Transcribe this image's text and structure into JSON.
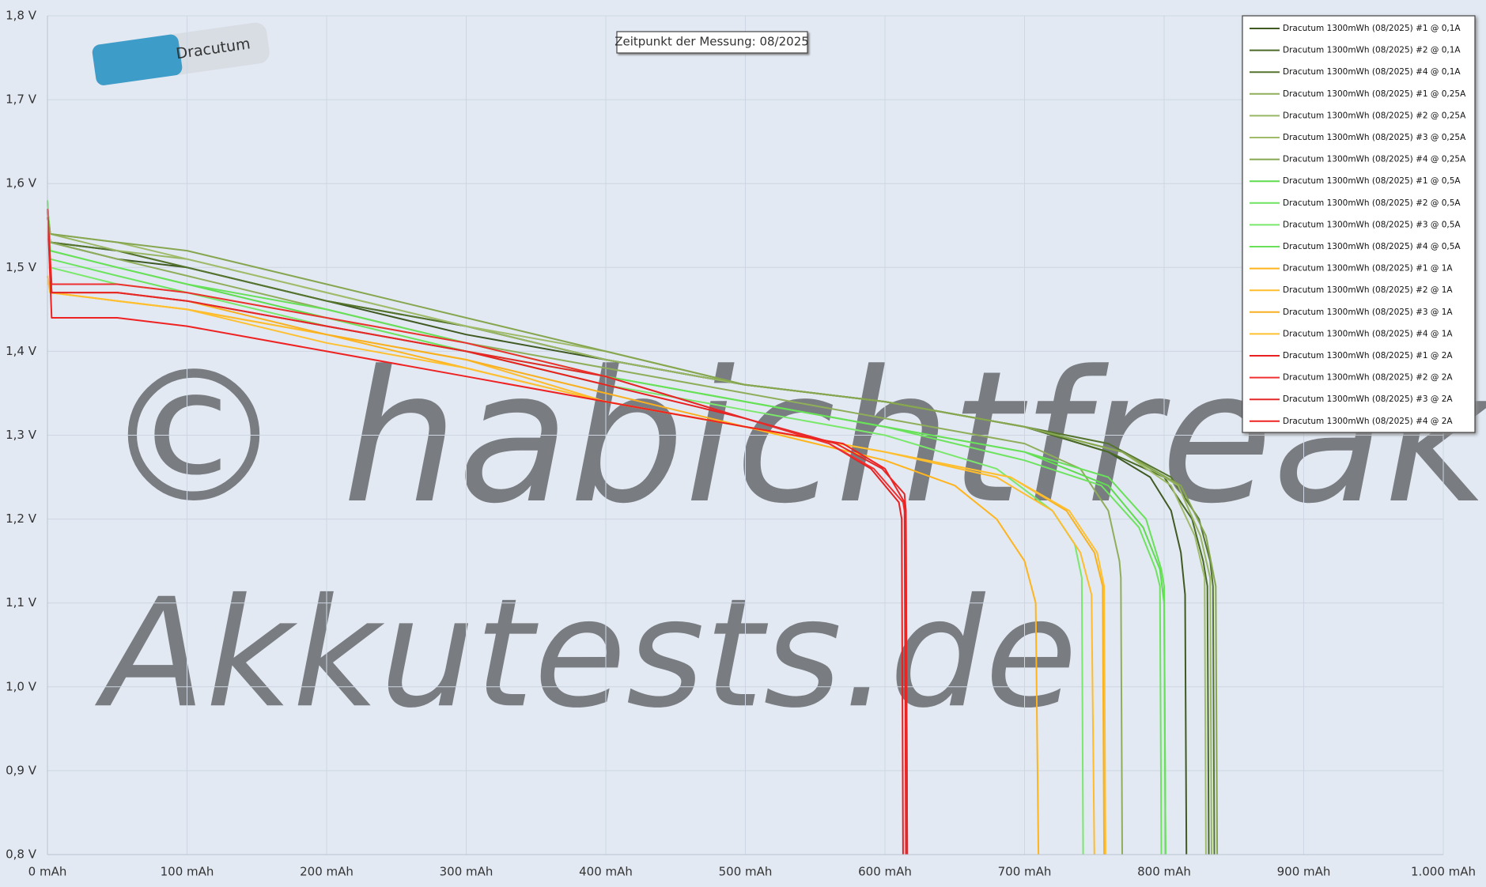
{
  "chart_data": {
    "type": "line",
    "annotation": "Zeitpunkt der Messung: 08/2025",
    "watermark": [
      "© habichtfreak",
      "Akkutests.de"
    ],
    "xlim": [
      0,
      1000
    ],
    "ylim": [
      0.8,
      1.8
    ],
    "grid": true,
    "legend": "top-right",
    "xticks": [
      {
        "value": 0,
        "label": "0 mAh"
      },
      {
        "value": 100,
        "label": "100 mAh"
      },
      {
        "value": 200,
        "label": "200 mAh"
      },
      {
        "value": 300,
        "label": "300 mAh"
      },
      {
        "value": 400,
        "label": "400 mAh"
      },
      {
        "value": 500,
        "label": "500 mAh"
      },
      {
        "value": 600,
        "label": "600 mAh"
      },
      {
        "value": 700,
        "label": "700 mAh"
      },
      {
        "value": 800,
        "label": "800 mAh"
      },
      {
        "value": 900,
        "label": "900 mAh"
      },
      {
        "value": 1000,
        "label": "1.000 mAh"
      }
    ],
    "yticks": [
      {
        "value": 0.8,
        "label": "0,8 V"
      },
      {
        "value": 0.9,
        "label": "0,9 V"
      },
      {
        "value": 1.0,
        "label": "1,0 V"
      },
      {
        "value": 1.1,
        "label": "1,1 V"
      },
      {
        "value": 1.2,
        "label": "1,2 V"
      },
      {
        "value": 1.3,
        "label": "1,3 V"
      },
      {
        "value": 1.4,
        "label": "1,4 V"
      },
      {
        "value": 1.5,
        "label": "1,5 V"
      },
      {
        "value": 1.6,
        "label": "1,6 V"
      },
      {
        "value": 1.7,
        "label": "1,7 V"
      },
      {
        "value": 1.8,
        "label": "1,8 V"
      }
    ],
    "series": [
      {
        "name": "Dracutum 1300mWh (08/2025) #1 @ 0,1A",
        "color": "#3f5a22",
        "x": [
          0,
          2,
          50,
          100,
          200,
          300,
          400,
          500,
          600,
          700,
          760,
          790,
          805,
          812,
          815,
          816
        ],
        "values": [
          1.56,
          1.53,
          1.51,
          1.5,
          1.46,
          1.42,
          1.39,
          1.36,
          1.34,
          1.31,
          1.28,
          1.25,
          1.21,
          1.16,
          1.11,
          0.8
        ]
      },
      {
        "name": "Dracutum 1300mWh (08/2025) #2 @ 0,1A",
        "color": "#4a6a28",
        "x": [
          0,
          2,
          50,
          100,
          200,
          300,
          400,
          500,
          600,
          700,
          760,
          800,
          820,
          828,
          831,
          832
        ],
        "values": [
          1.56,
          1.53,
          1.52,
          1.5,
          1.46,
          1.43,
          1.39,
          1.36,
          1.34,
          1.31,
          1.28,
          1.25,
          1.2,
          1.15,
          1.12,
          0.8
        ]
      },
      {
        "name": "Dracutum 1300mWh (08/2025) #4 @ 0,1A",
        "color": "#55742e",
        "x": [
          0,
          2,
          50,
          100,
          200,
          300,
          400,
          500,
          600,
          700,
          760,
          805,
          825,
          833,
          835,
          836
        ],
        "values": [
          1.56,
          1.53,
          1.52,
          1.5,
          1.46,
          1.43,
          1.39,
          1.36,
          1.34,
          1.31,
          1.29,
          1.25,
          1.2,
          1.15,
          1.12,
          0.8
        ]
      },
      {
        "name": "Dracutum 1300mWh (08/2025) #1 @ 0,25A",
        "color": "#8fae5a",
        "x": [
          0,
          2,
          50,
          100,
          200,
          300,
          400,
          500,
          600,
          700,
          740,
          760,
          768,
          769,
          770
        ],
        "values": [
          1.57,
          1.53,
          1.51,
          1.49,
          1.45,
          1.41,
          1.38,
          1.35,
          1.32,
          1.29,
          1.26,
          1.21,
          1.15,
          1.13,
          0.8
        ]
      },
      {
        "name": "Dracutum 1300mWh (08/2025) #2 @ 0,25A",
        "color": "#98b663",
        "x": [
          0,
          2,
          50,
          100,
          200,
          300,
          400,
          500,
          600,
          700,
          770,
          810,
          826,
          833,
          834
        ],
        "values": [
          1.57,
          1.54,
          1.52,
          1.51,
          1.47,
          1.43,
          1.39,
          1.36,
          1.34,
          1.31,
          1.28,
          1.24,
          1.18,
          1.13,
          0.8
        ]
      },
      {
        "name": "Dracutum 1300mWh (08/2025) #3 @ 0,25A",
        "color": "#a0bc6b",
        "x": [
          0,
          2,
          50,
          100,
          200,
          300,
          400,
          500,
          600,
          700,
          770,
          805,
          822,
          829,
          830
        ],
        "values": [
          1.57,
          1.54,
          1.53,
          1.51,
          1.47,
          1.43,
          1.4,
          1.36,
          1.34,
          1.31,
          1.28,
          1.24,
          1.18,
          1.13,
          0.8
        ]
      },
      {
        "name": "Dracutum 1300mWh (08/2025) #4 @ 0,25A",
        "color": "#86a650",
        "x": [
          0,
          2,
          50,
          100,
          200,
          300,
          400,
          500,
          600,
          700,
          770,
          812,
          830,
          837,
          838
        ],
        "values": [
          1.57,
          1.54,
          1.53,
          1.52,
          1.48,
          1.44,
          1.4,
          1.36,
          1.34,
          1.31,
          1.28,
          1.24,
          1.18,
          1.12,
          0.8
        ]
      },
      {
        "name": "Dracutum 1300mWh (08/2025) #1 @ 0,5A",
        "color": "#5fdc4f",
        "x": [
          0,
          2,
          50,
          100,
          200,
          300,
          400,
          500,
          600,
          700,
          760,
          785,
          797,
          800,
          801
        ],
        "values": [
          1.58,
          1.52,
          1.5,
          1.48,
          1.44,
          1.41,
          1.37,
          1.34,
          1.31,
          1.28,
          1.24,
          1.19,
          1.14,
          1.1,
          0.8
        ]
      },
      {
        "name": "Dracutum 1300mWh (08/2025) #2 @ 0,5A",
        "color": "#6de35e",
        "x": [
          0,
          2,
          50,
          100,
          200,
          300,
          400,
          500,
          600,
          700,
          755,
          782,
          794,
          797,
          798
        ],
        "values": [
          1.58,
          1.51,
          1.49,
          1.47,
          1.44,
          1.4,
          1.37,
          1.34,
          1.31,
          1.27,
          1.24,
          1.19,
          1.14,
          1.12,
          0.8
        ]
      },
      {
        "name": "Dracutum 1300mWh (08/2025) #3 @ 0,5A",
        "color": "#7ae86b",
        "x": [
          0,
          2,
          50,
          100,
          200,
          300,
          400,
          500,
          600,
          680,
          720,
          736,
          741,
          742
        ],
        "values": [
          1.58,
          1.5,
          1.48,
          1.47,
          1.43,
          1.4,
          1.36,
          1.33,
          1.3,
          1.26,
          1.21,
          1.17,
          1.13,
          0.8
        ]
      },
      {
        "name": "Dracutum 1300mWh (08/2025) #4 @ 0,5A",
        "color": "#68e058",
        "x": [
          0,
          2,
          50,
          100,
          200,
          300,
          400,
          500,
          600,
          700,
          760,
          787,
          798,
          800,
          801
        ],
        "values": [
          1.58,
          1.52,
          1.5,
          1.48,
          1.45,
          1.41,
          1.37,
          1.34,
          1.31,
          1.28,
          1.25,
          1.2,
          1.14,
          1.12,
          0.8
        ]
      },
      {
        "name": "Dracutum 1300mWh (08/2025) #1 @ 1A",
        "color": "#ffb41c",
        "x": [
          0,
          2,
          50,
          100,
          200,
          300,
          400,
          500,
          600,
          650,
          680,
          700,
          708,
          710
        ],
        "values": [
          1.49,
          1.47,
          1.46,
          1.45,
          1.42,
          1.38,
          1.34,
          1.31,
          1.27,
          1.24,
          1.2,
          1.15,
          1.1,
          0.8
        ]
      },
      {
        "name": "Dracutum 1300mWh (08/2025) #2 @ 1A",
        "color": "#ffbc2c",
        "x": [
          0,
          2,
          50,
          100,
          200,
          300,
          400,
          500,
          600,
          680,
          720,
          740,
          748,
          750
        ],
        "values": [
          1.49,
          1.47,
          1.46,
          1.45,
          1.42,
          1.39,
          1.34,
          1.31,
          1.28,
          1.25,
          1.21,
          1.16,
          1.11,
          0.8
        ]
      },
      {
        "name": "Dracutum 1300mWh (08/2025) #3 @ 1A",
        "color": "#f8b020",
        "x": [
          0,
          2,
          50,
          100,
          200,
          300,
          400,
          500,
          600,
          690,
          730,
          750,
          756,
          757
        ],
        "values": [
          1.49,
          1.47,
          1.47,
          1.46,
          1.42,
          1.39,
          1.35,
          1.31,
          1.28,
          1.25,
          1.21,
          1.16,
          1.12,
          0.8
        ]
      },
      {
        "name": "Dracutum 1300mWh (08/2025) #4 @ 1A",
        "color": "#ffc030",
        "x": [
          0,
          2,
          50,
          100,
          200,
          300,
          400,
          500,
          600,
          690,
          732,
          752,
          757,
          758
        ],
        "values": [
          1.49,
          1.47,
          1.46,
          1.45,
          1.41,
          1.38,
          1.34,
          1.31,
          1.28,
          1.25,
          1.21,
          1.16,
          1.12,
          0.8
        ]
      },
      {
        "name": "Dracutum 1300mWh (08/2025) #1 @ 2A",
        "color": "#e82020",
        "x": [
          0,
          3,
          50,
          100,
          200,
          300,
          400,
          500,
          560,
          590,
          610,
          612,
          613
        ],
        "values": [
          1.57,
          1.47,
          1.47,
          1.46,
          1.43,
          1.4,
          1.36,
          1.32,
          1.29,
          1.26,
          1.22,
          1.2,
          0.8
        ]
      },
      {
        "name": "Dracutum 1300mWh (08/2025) #2 @ 2A",
        "color": "#f03030",
        "x": [
          0,
          3,
          50,
          100,
          200,
          300,
          400,
          500,
          560,
          592,
          613,
          615,
          616
        ],
        "values": [
          1.57,
          1.48,
          1.48,
          1.47,
          1.44,
          1.41,
          1.37,
          1.32,
          1.29,
          1.26,
          1.22,
          1.2,
          0.8
        ]
      },
      {
        "name": "Dracutum 1300mWh (08/2025) #3 @ 2A",
        "color": "#e52828",
        "x": [
          0,
          3,
          50,
          100,
          200,
          300,
          400,
          500,
          565,
          598,
          614,
          615,
          616
        ],
        "values": [
          1.57,
          1.47,
          1.47,
          1.46,
          1.43,
          1.4,
          1.37,
          1.32,
          1.29,
          1.26,
          1.23,
          1.21,
          0.8
        ]
      },
      {
        "name": "Dracutum 1300mWh (08/2025) #4 @ 2A",
        "color": "#ef2222",
        "x": [
          0,
          3,
          50,
          100,
          200,
          300,
          400,
          500,
          570,
          600,
          614,
          615
        ],
        "values": [
          1.57,
          1.44,
          1.44,
          1.43,
          1.4,
          1.37,
          1.34,
          1.31,
          1.29,
          1.26,
          1.22,
          0.8
        ]
      }
    ]
  }
}
